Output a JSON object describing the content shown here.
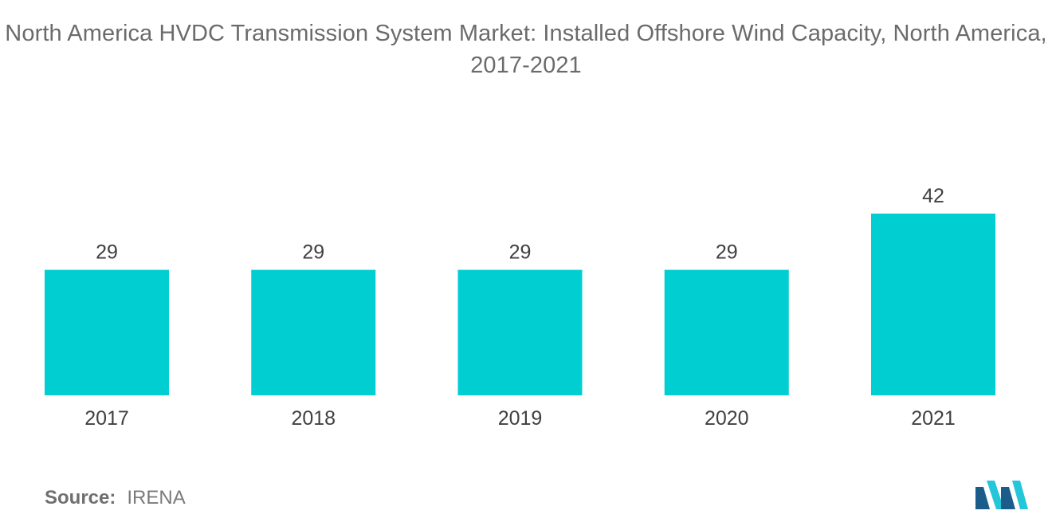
{
  "chart_data": {
    "type": "bar",
    "title": "North America HVDC Transmission System Market: Installed Offshore Wind Capacity, North America, 2017-2021",
    "categories": [
      "2017",
      "2018",
      "2019",
      "2020",
      "2021"
    ],
    "values": [
      29,
      29,
      29,
      29,
      42
    ],
    "data_labels": [
      "29",
      "29",
      "29",
      "29",
      "42"
    ],
    "xlabel": "",
    "ylabel": "",
    "ylim": [
      0,
      42
    ],
    "grid": false,
    "legend": "none",
    "bar_color": "#00ced1"
  },
  "source": {
    "label": "Source:",
    "value": "IRENA"
  },
  "logo": {
    "icon": "mordor-intelligence-logo-icon",
    "colors": [
      "#1b5d8a",
      "#26c6da"
    ]
  }
}
